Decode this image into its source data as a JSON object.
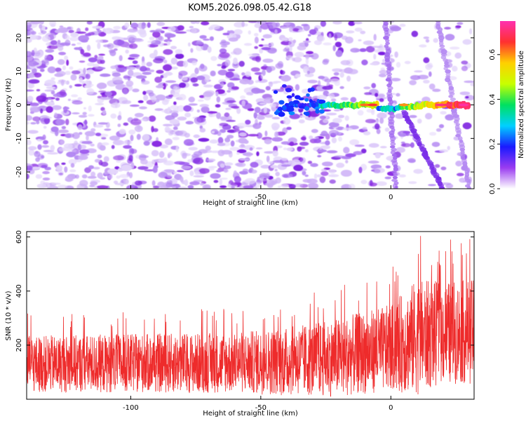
{
  "title": "KOM5.2026.098.05.42.G18",
  "chart_data": [
    {
      "type": "heatmap",
      "name": "spectrogram",
      "xlabel": "Height of straight line (km)",
      "ylabel": "Frequency (Hz)",
      "xlim": [
        -140,
        32
      ],
      "ylim": [
        -25,
        25
      ],
      "xticks": [
        -100,
        -50,
        0
      ],
      "yticks": [
        -20,
        -10,
        0,
        10,
        20
      ],
      "colorbar": {
        "label": "Normalized spectral amplitude",
        "range": [
          0.0,
          0.75
        ],
        "ticks": [
          0.0,
          0.2,
          0.4,
          0.6
        ],
        "colors": [
          "#ffffff",
          "#9a3cf0",
          "#1a1aff",
          "#00d0ff",
          "#00e060",
          "#c8ff00",
          "#ffd000",
          "#ff3030",
          "#ff30b0"
        ]
      },
      "features": {
        "main_band": {
          "frequency_hz": 0,
          "x_start": -40,
          "x_end": 30,
          "peak_amplitude": 0.7
        },
        "diagonal_trace_1": {
          "x": [
            -2,
            2
          ],
          "y": [
            25,
            -25
          ]
        },
        "diagonal_trace_2": {
          "x": [
            18,
            30
          ],
          "y": [
            25,
            -25
          ]
        },
        "descending_trace": {
          "x": [
            5,
            20
          ],
          "y": [
            -2,
            -25
          ]
        }
      }
    },
    {
      "type": "line",
      "name": "snr",
      "xlabel": "Height of straight line (km)",
      "ylabel": "SNR (10 * v/v)",
      "xlim": [
        -140,
        32
      ],
      "ylim": [
        0,
        620
      ],
      "xticks": [
        -100,
        -50,
        0
      ],
      "yticks": [
        200,
        400,
        600
      ],
      "series": [
        {
          "name": "SNR",
          "color": "#ee2b2b",
          "trend": {
            "x": [
              -140,
              -60,
              -40,
              -20,
              0,
              10,
              20,
              32
            ],
            "mean": [
              130,
              135,
              140,
              155,
              190,
              230,
              245,
              250
            ],
            "peak": [
              320,
              340,
              370,
              420,
              480,
              620,
              590,
              600
            ]
          }
        }
      ]
    }
  ]
}
